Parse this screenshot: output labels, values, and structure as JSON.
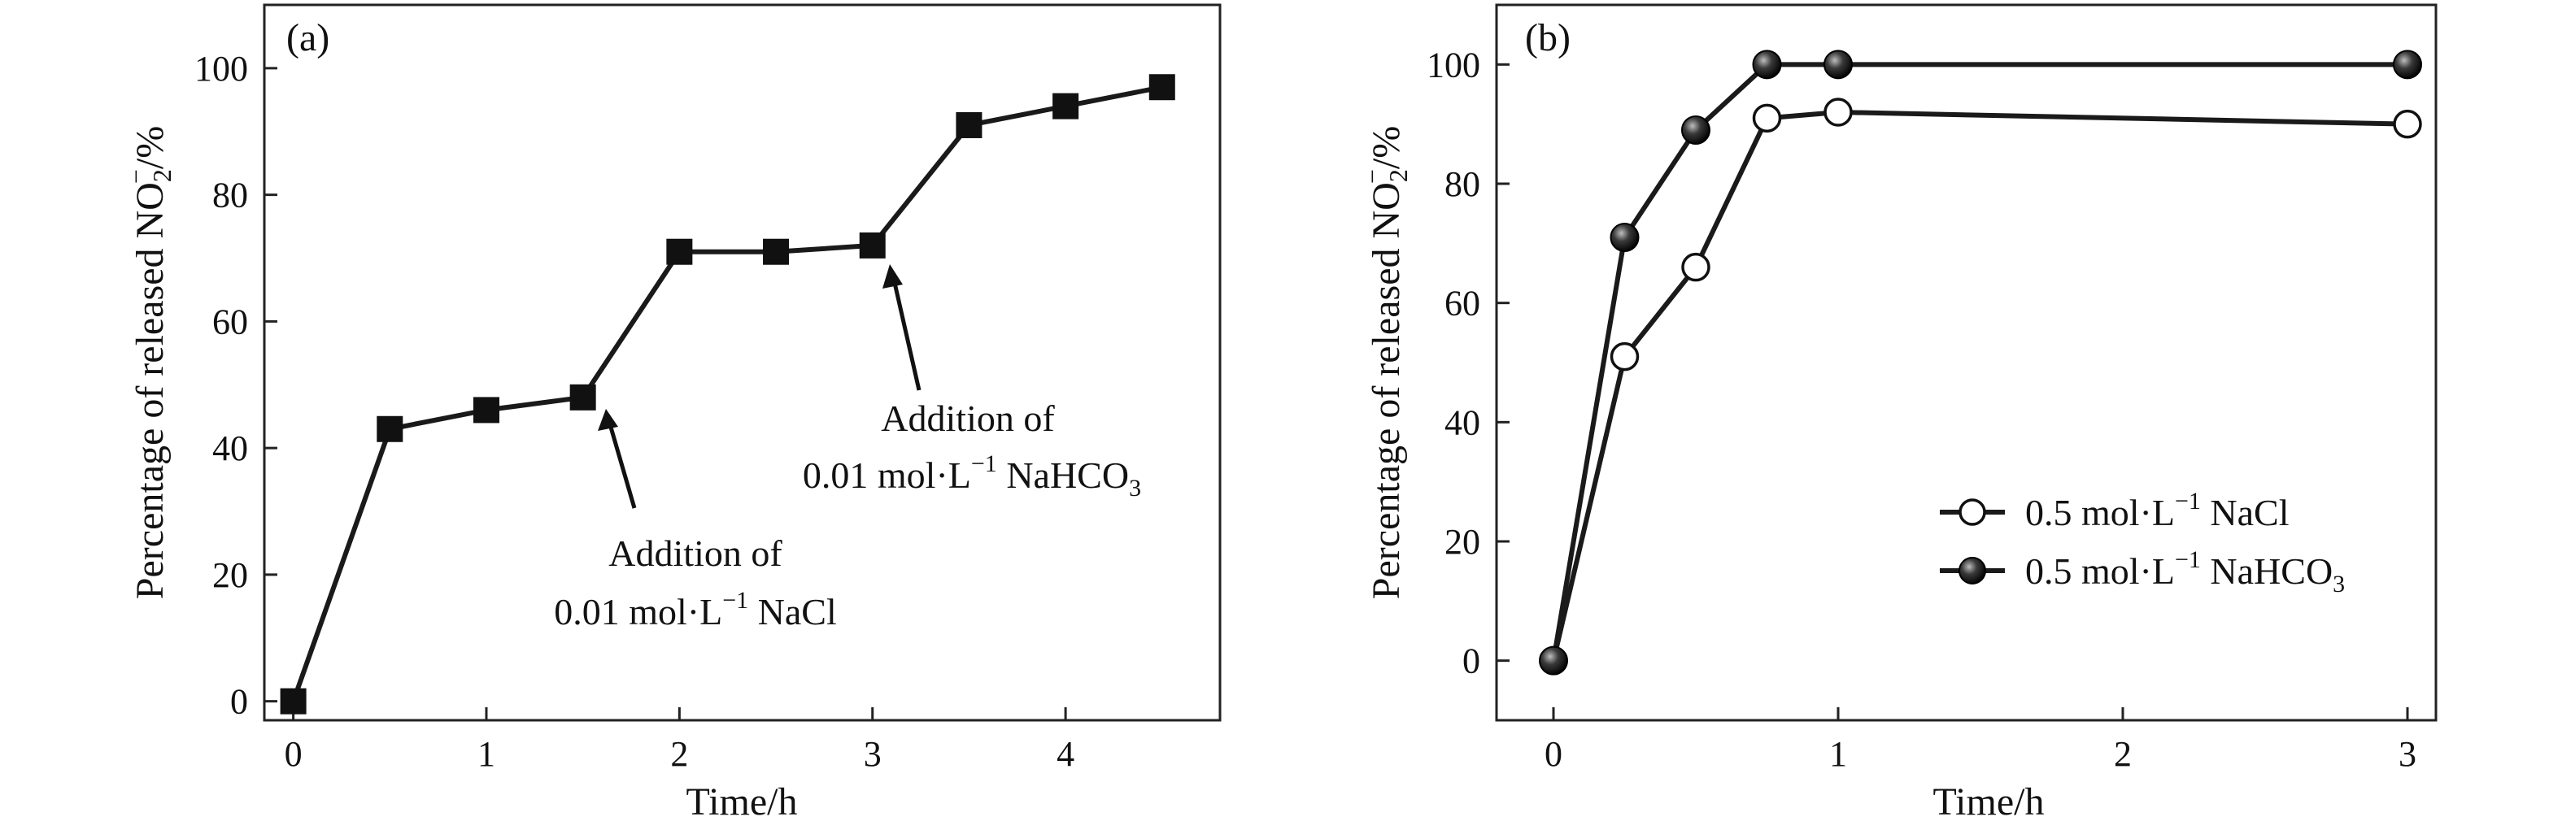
{
  "chart_data": [
    {
      "panel_label": "(a)",
      "type": "line",
      "xlabel": "Time/h",
      "ylabel_main": "Percentage of released NO",
      "ylabel_sub": "2",
      "ylabel_sup": "−",
      "ylabel_unit": "/%",
      "xlim": [
        -0.15,
        4.8
      ],
      "ylim": [
        -3,
        110
      ],
      "xticks": [
        0,
        1,
        2,
        3,
        4
      ],
      "yticks": [
        0,
        20,
        40,
        60,
        80,
        100
      ],
      "grid": false,
      "series": [
        {
          "marker": "square-filled",
          "x": [
            0,
            0.5,
            1,
            1.5,
            2,
            2.5,
            3,
            3.5,
            4,
            4.5
          ],
          "y": [
            0,
            43,
            46,
            48,
            71,
            71,
            72,
            91,
            94,
            97
          ]
        }
      ],
      "annotations": [
        {
          "line1": "Addition of",
          "line2_main": "0.01 mol·L",
          "line2_sup": "−1",
          "line2_rest": " NaCl",
          "line2_sub": "",
          "arrow_to": [
            1.55,
            46
          ]
        },
        {
          "line1": "Addition of",
          "line2_main": "0.01 mol·L",
          "line2_sup": "−1",
          "line2_rest": " NaHCO",
          "line2_sub": "3",
          "arrow_to": [
            3.02,
            69
          ]
        }
      ]
    },
    {
      "panel_label": "(b)",
      "type": "line",
      "xlabel": "Time/h",
      "ylabel_main": "Percentage of released NO",
      "ylabel_sub": "2",
      "ylabel_sup": "−",
      "ylabel_unit": "/%",
      "xlim": [
        -0.2,
        3.1
      ],
      "ylim": [
        -10,
        110
      ],
      "xticks": [
        0,
        1,
        2,
        3
      ],
      "yticks": [
        0,
        20,
        40,
        60,
        80,
        100
      ],
      "grid": false,
      "legend_position": "bottom-right",
      "series": [
        {
          "name_main": "0.5 mol·L",
          "name_sup": "−1",
          "name_rest": " NaCl",
          "name_sub": "",
          "marker": "circle-open",
          "x": [
            0,
            0.25,
            0.5,
            0.75,
            1,
            3
          ],
          "y": [
            0,
            51,
            66,
            91,
            92,
            90
          ]
        },
        {
          "name_main": "0.5 mol·L",
          "name_sup": "−1",
          "name_rest": " NaHCO",
          "name_sub": "3",
          "marker": "circle-filled",
          "x": [
            0,
            0.25,
            0.5,
            0.75,
            1,
            3
          ],
          "y": [
            0,
            71,
            89,
            100,
            100,
            100
          ]
        }
      ]
    }
  ]
}
